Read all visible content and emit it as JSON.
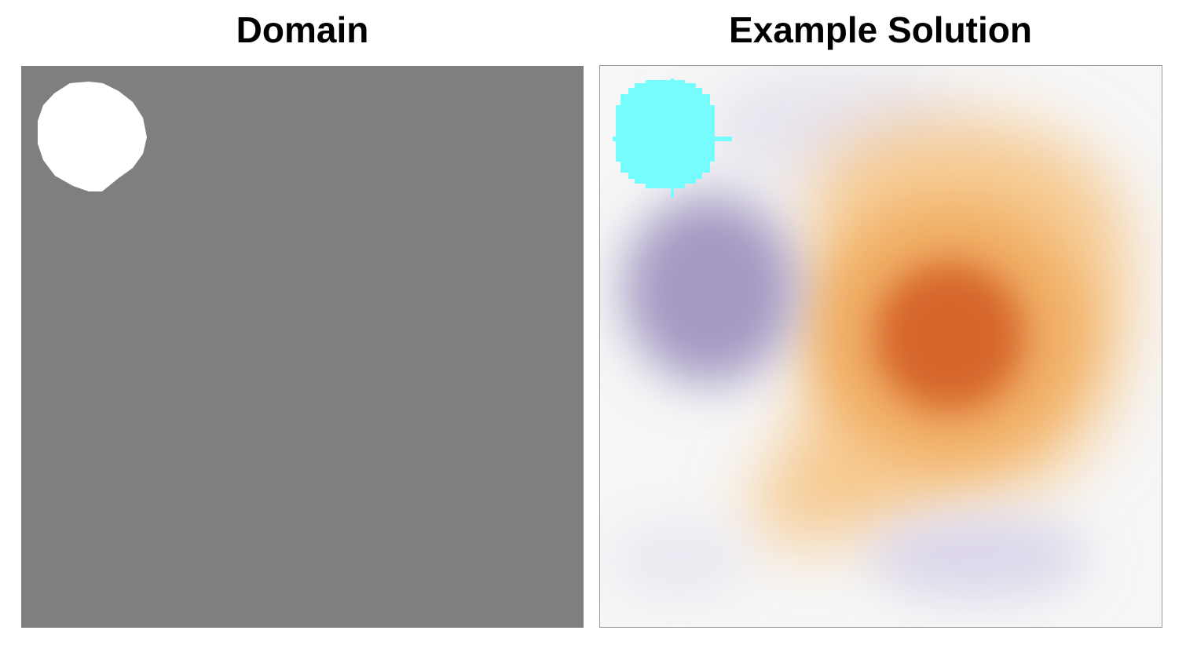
{
  "titles": {
    "domain": "Domain",
    "solution": "Example Solution"
  },
  "colors": {
    "domain_background": "#7f7f7f",
    "hole": "#ffffff",
    "solution_background": "#f6f6f6",
    "source_marker": "#74fdfc",
    "positive_strong": "#d5662a",
    "positive_mid": "#f2b46a",
    "negative": "#9b8fbd"
  },
  "colormap": "diverging purple-white-orange"
}
